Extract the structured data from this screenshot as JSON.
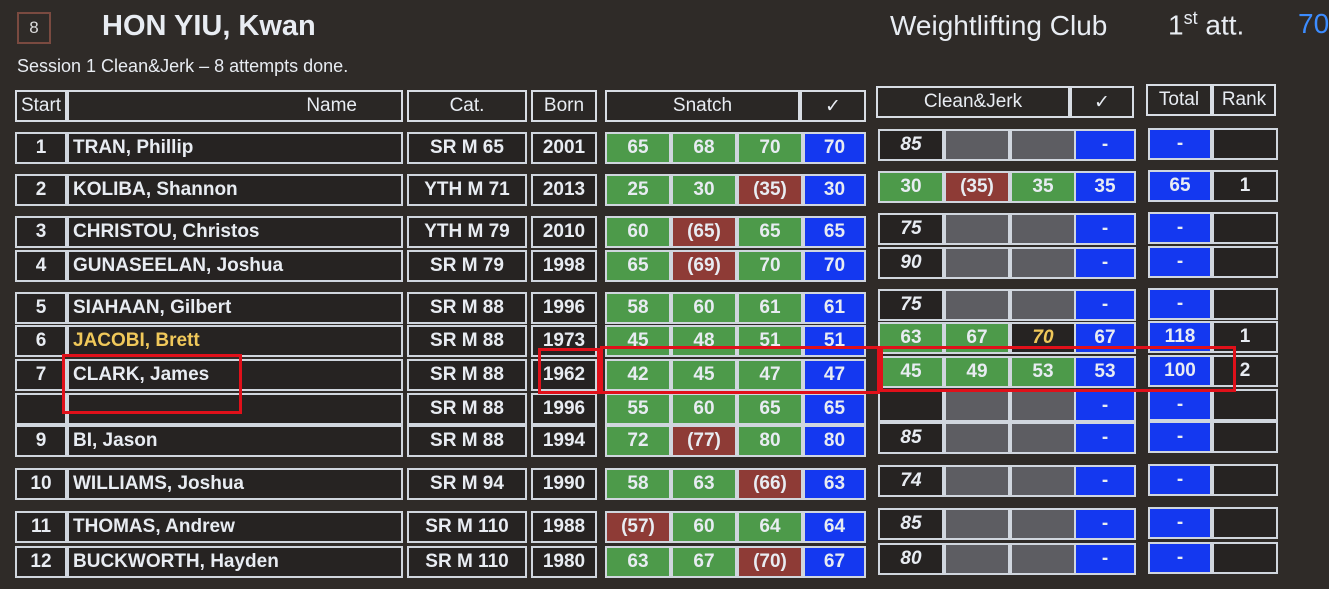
{
  "header": {
    "start_badge": "8",
    "lifter": "HON YIU, Kwan",
    "club": "Weightlifting Club",
    "attempt_num": "1",
    "attempt_sup": "st",
    "attempt_word": "att.",
    "weight": "70",
    "session": "Session 1 Clean&Jerk – 8 attempts done."
  },
  "columns": {
    "start": "Start",
    "name": "Name",
    "cat": "Cat.",
    "born": "Born",
    "snatch": "Snatch",
    "snatch_best": "✓",
    "cj": "Clean&Jerk",
    "cj_best": "✓",
    "total": "Total",
    "rank": "Rank"
  },
  "colors": {
    "good": "#4d9a4a",
    "fail": "#8e3b36",
    "best": "#1438f0",
    "pending": "#5d5d62",
    "current_athlete": "#f0c85a",
    "highlight": "#e0101a"
  },
  "rows": [
    {
      "start": "1",
      "name": "TRAN, Phillip",
      "cat": "SR M 65",
      "born": "2001",
      "snatch": [
        [
          "65",
          "g"
        ],
        [
          "68",
          "g"
        ],
        [
          "70",
          "g"
        ],
        [
          "70",
          "b"
        ]
      ],
      "cj": [
        [
          "85",
          "d"
        ],
        [
          "",
          "gr"
        ],
        [
          "",
          "gr"
        ],
        [
          "-",
          "b"
        ]
      ],
      "total": "-",
      "rank": ""
    },
    {
      "start": "2",
      "name": "KOLIBA, Shannon",
      "cat": "YTH M 71",
      "born": "2013",
      "snatch": [
        [
          "25",
          "g"
        ],
        [
          "30",
          "g"
        ],
        [
          "(35)",
          "f"
        ],
        [
          "30",
          "b"
        ]
      ],
      "cj": [
        [
          "30",
          "g"
        ],
        [
          "(35)",
          "f"
        ],
        [
          "35",
          "g"
        ],
        [
          "35",
          "b"
        ]
      ],
      "total": "65",
      "rank": "1"
    },
    {
      "start": "3",
      "name": "CHRISTOU, Christos",
      "cat": "YTH M 79",
      "born": "2010",
      "snatch": [
        [
          "60",
          "g"
        ],
        [
          "(65)",
          "f"
        ],
        [
          "65",
          "g"
        ],
        [
          "65",
          "b"
        ]
      ],
      "cj": [
        [
          "75",
          "d"
        ],
        [
          "",
          "gr"
        ],
        [
          "",
          "gr"
        ],
        [
          "-",
          "b"
        ]
      ],
      "total": "-",
      "rank": ""
    },
    {
      "start": "4",
      "name": "GUNASEELAN, Joshua",
      "cat": "SR M 79",
      "born": "1998",
      "snatch": [
        [
          "65",
          "g"
        ],
        [
          "(69)",
          "f"
        ],
        [
          "70",
          "g"
        ],
        [
          "70",
          "b"
        ]
      ],
      "cj": [
        [
          "90",
          "d"
        ],
        [
          "",
          "gr"
        ],
        [
          "",
          "gr"
        ],
        [
          "-",
          "b"
        ]
      ],
      "total": "-",
      "rank": ""
    },
    {
      "start": "5",
      "name": "SIAHAAN, Gilbert",
      "cat": "SR M 88",
      "born": "1996",
      "snatch": [
        [
          "58",
          "g"
        ],
        [
          "60",
          "g"
        ],
        [
          "61",
          "g"
        ],
        [
          "61",
          "b"
        ]
      ],
      "cj": [
        [
          "75",
          "d"
        ],
        [
          "",
          "gr"
        ],
        [
          "",
          "gr"
        ],
        [
          "-",
          "b"
        ]
      ],
      "total": "-",
      "rank": ""
    },
    {
      "start": "6",
      "name": "JACOBI, Brett",
      "current": true,
      "cat": "SR M 88",
      "born": "1973",
      "snatch": [
        [
          "45",
          "g"
        ],
        [
          "48",
          "g"
        ],
        [
          "51",
          "g"
        ],
        [
          "51",
          "b"
        ]
      ],
      "cj": [
        [
          "63",
          "g"
        ],
        [
          "67",
          "g"
        ],
        [
          "70",
          "d"
        ],
        [
          "67",
          "b"
        ]
      ],
      "total": "118",
      "rank": "1"
    },
    {
      "start": "7",
      "name": "CLARK, James",
      "cat": "SR M 88",
      "born": "1962",
      "snatch": [
        [
          "42",
          "g"
        ],
        [
          "45",
          "g"
        ],
        [
          "47",
          "g"
        ],
        [
          "47",
          "b"
        ]
      ],
      "cj": [
        [
          "45",
          "g"
        ],
        [
          "49",
          "g"
        ],
        [
          "53",
          "g"
        ],
        [
          "53",
          "b"
        ]
      ],
      "total": "100",
      "rank": "2"
    },
    {
      "start": "",
      "name": "",
      "cat": "SR M 88",
      "born": "1996",
      "snatch": [
        [
          "55",
          "g"
        ],
        [
          "60",
          "g"
        ],
        [
          "65",
          "g"
        ],
        [
          "65",
          "b"
        ]
      ],
      "cj": [
        [
          "",
          "d"
        ],
        [
          "",
          "gr"
        ],
        [
          "",
          "gr"
        ],
        [
          "-",
          "b"
        ]
      ],
      "total": "-",
      "rank": ""
    },
    {
      "start": "9",
      "name": "BI, Jason",
      "cat": "SR M 88",
      "born": "1994",
      "snatch": [
        [
          "72",
          "g"
        ],
        [
          "(77)",
          "f"
        ],
        [
          "80",
          "g"
        ],
        [
          "80",
          "b"
        ]
      ],
      "cj": [
        [
          "85",
          "d"
        ],
        [
          "",
          "gr"
        ],
        [
          "",
          "gr"
        ],
        [
          "-",
          "b"
        ]
      ],
      "total": "-",
      "rank": ""
    },
    {
      "start": "10",
      "name": "WILLIAMS, Joshua",
      "cat": "SR M 94",
      "born": "1990",
      "snatch": [
        [
          "58",
          "g"
        ],
        [
          "63",
          "g"
        ],
        [
          "(66)",
          "f"
        ],
        [
          "63",
          "b"
        ]
      ],
      "cj": [
        [
          "74",
          "d"
        ],
        [
          "",
          "gr"
        ],
        [
          "",
          "gr"
        ],
        [
          "-",
          "b"
        ]
      ],
      "total": "-",
      "rank": ""
    },
    {
      "start": "11",
      "name": "THOMAS, Andrew",
      "cat": "SR M 110",
      "born": "1988",
      "snatch": [
        [
          "(57)",
          "f"
        ],
        [
          "60",
          "g"
        ],
        [
          "64",
          "g"
        ],
        [
          "64",
          "b"
        ]
      ],
      "cj": [
        [
          "85",
          "d"
        ],
        [
          "",
          "gr"
        ],
        [
          "",
          "gr"
        ],
        [
          "-",
          "b"
        ]
      ],
      "total": "-",
      "rank": ""
    },
    {
      "start": "12",
      "name": "BUCKWORTH, Hayden",
      "cat": "SR M 110",
      "born": "1980",
      "snatch": [
        [
          "63",
          "g"
        ],
        [
          "67",
          "g"
        ],
        [
          "(70)",
          "f"
        ],
        [
          "67",
          "b"
        ]
      ],
      "cj": [
        [
          "80",
          "d"
        ],
        [
          "",
          "gr"
        ],
        [
          "",
          "gr"
        ],
        [
          "-",
          "b"
        ]
      ],
      "total": "-",
      "rank": ""
    }
  ]
}
